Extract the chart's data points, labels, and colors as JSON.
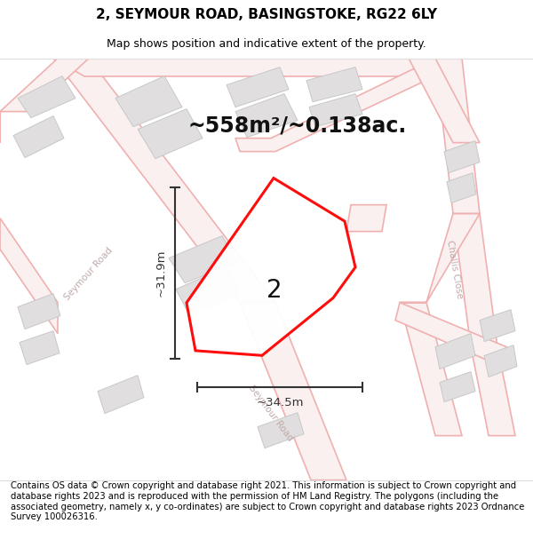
{
  "title": "2, SEYMOUR ROAD, BASINGSTOKE, RG22 6LY",
  "subtitle": "Map shows position and indicative extent of the property.",
  "area_text": "~558m²/~0.138ac.",
  "label_number": "2",
  "dim_vertical": "~31.9m",
  "dim_horizontal": "~34.5m",
  "footer_text": "Contains OS data © Crown copyright and database right 2021. This information is subject to Crown copyright and database rights 2023 and is reproduced with the permission of HM Land Registry. The polygons (including the associated geometry, namely x, y co-ordinates) are subject to Crown copyright and database rights 2023 Ordnance Survey 100026316.",
  "bg_color": "#ffffff",
  "map_bg": "#f7f4f4",
  "road_color": "#f0b0b0",
  "road_lw": 1.2,
  "building_fill": "#e0dede",
  "building_edge": "#c8c8c8",
  "plot_color": "#ff0000",
  "plot_lw": 2.2,
  "dim_color": "#333333",
  "title_fontsize": 11,
  "subtitle_fontsize": 9,
  "area_fontsize": 17,
  "label_fontsize": 20,
  "dim_fontsize": 9.5,
  "footer_fontsize": 7.2,
  "road_label_color": "#c0aaaa",
  "road_label_fs": 7.5
}
